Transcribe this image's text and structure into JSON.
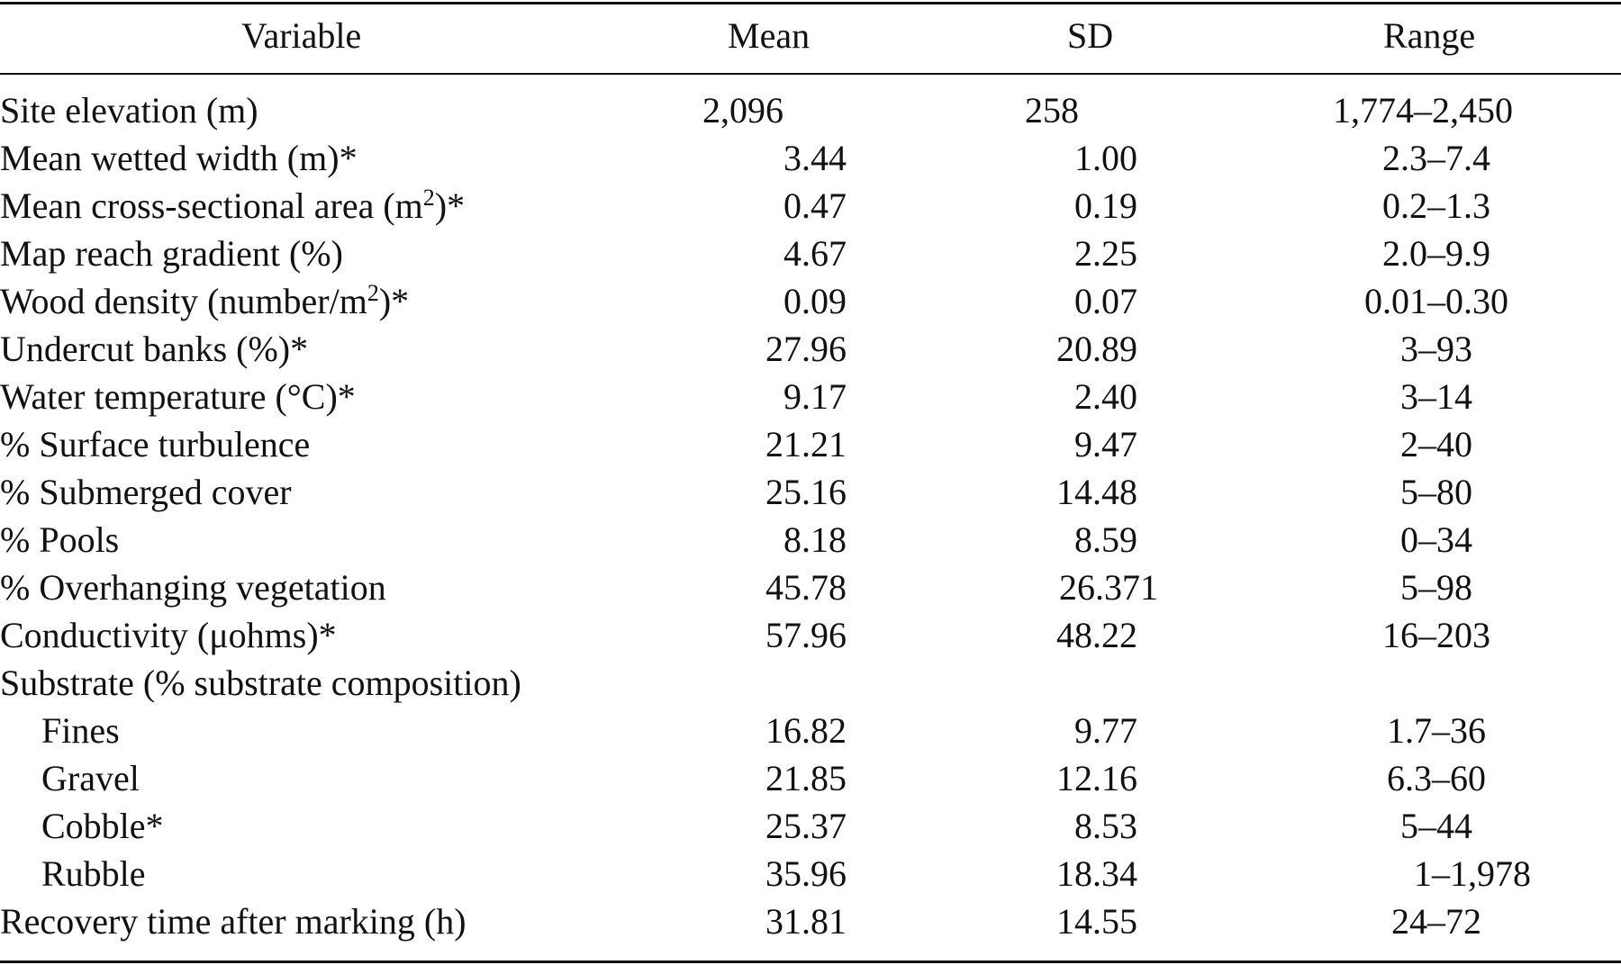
{
  "table": {
    "headers": {
      "variable": "Variable",
      "mean": "Mean",
      "sd": "SD",
      "range": "Range"
    },
    "rows": [
      {
        "variable": "Site elevation (m)",
        "mean": "2,096",
        "sd": "258",
        "range": "1,774–2,450"
      },
      {
        "variable": "Mean wetted width (m)*",
        "mean": "3.44",
        "sd": "1.00",
        "range": "2.3–7.4"
      },
      {
        "variable_prefix": "Mean cross-sectional area (m",
        "variable_sup": "2",
        "variable_suffix": ")*",
        "mean": "0.47",
        "sd": "0.19",
        "range": "0.2–1.3"
      },
      {
        "variable": "Map reach gradient (%)",
        "mean": "4.67",
        "sd": "2.25",
        "range": "2.0–9.9"
      },
      {
        "variable_prefix": "Wood density (number/m",
        "variable_sup": "2",
        "variable_suffix": ")*",
        "mean": "0.09",
        "sd": "0.07",
        "range": "0.01–0.30"
      },
      {
        "variable": "Undercut banks (%)*",
        "mean": "27.96",
        "sd": "20.89",
        "range": "3–93"
      },
      {
        "variable": "Water temperature (°C)*",
        "mean": "9.17",
        "sd": "2.40",
        "range": "3–14"
      },
      {
        "variable": "% Surface turbulence",
        "mean": "21.21",
        "sd": "9.47",
        "range": "2–40"
      },
      {
        "variable": "% Submerged cover",
        "mean": "25.16",
        "sd": "14.48",
        "range": "5–80"
      },
      {
        "variable": "% Pools",
        "mean": "8.18",
        "sd": "8.59",
        "range": "0–34"
      },
      {
        "variable": "% Overhanging vegetation",
        "mean": "45.78",
        "sd": "26.371",
        "range": "5–98"
      },
      {
        "variable": "Conductivity (μohms)*",
        "mean": "57.96",
        "sd": "48.22",
        "range": "16–203"
      },
      {
        "variable": "Substrate (% substrate composition)",
        "mean": "",
        "sd": "",
        "range": ""
      },
      {
        "variable": "Fines",
        "mean": "16.82",
        "sd": "9.77",
        "range": "1.7–36"
      },
      {
        "variable": "Gravel",
        "mean": "21.85",
        "sd": "12.16",
        "range": "6.3–60"
      },
      {
        "variable": "Cobble*",
        "mean": "25.37",
        "sd": "8.53",
        "range": "5–44"
      },
      {
        "variable": "Rubble",
        "mean": "35.96",
        "sd": "18.34",
        "range": "1–1,978"
      },
      {
        "variable": "Recovery time after marking (h)",
        "mean": "31.81",
        "sd": "14.55",
        "range": "24–72"
      }
    ]
  }
}
